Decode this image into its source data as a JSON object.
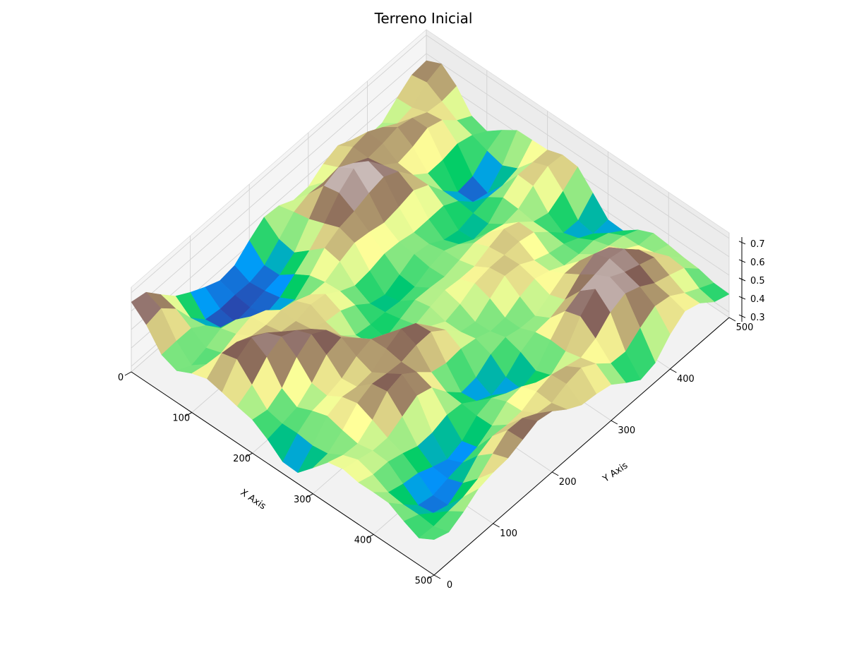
{
  "chart_data": {
    "type": "surface3d",
    "title": "Terreno Inicial",
    "xlabel": "X Axis",
    "ylabel": "Y Axis",
    "zlabel": "",
    "xlim": [
      0,
      500
    ],
    "ylim": [
      0,
      500
    ],
    "zlim": [
      0.27,
      0.73
    ],
    "x_ticks": [
      0,
      100,
      200,
      300,
      400,
      500
    ],
    "y_ticks": [
      0,
      100,
      200,
      300,
      400,
      500
    ],
    "z_ticks": [
      0.3,
      0.4,
      0.5,
      0.6,
      0.7
    ],
    "x_tick_labels": [
      "0",
      "100",
      "200",
      "300",
      "400",
      "500"
    ],
    "y_tick_labels": [
      "0",
      "100",
      "200",
      "300",
      "400",
      "500"
    ],
    "z_tick_labels": [
      "0.3",
      "0.4",
      "0.5",
      "0.6",
      "0.7"
    ],
    "colormap": "terrain",
    "grid": true,
    "grid_size": 21,
    "x": [
      0,
      25,
      50,
      75,
      100,
      125,
      150,
      175,
      200,
      225,
      250,
      275,
      300,
      325,
      350,
      375,
      400,
      425,
      450,
      475,
      500
    ],
    "y": [
      0,
      25,
      50,
      75,
      100,
      125,
      150,
      175,
      200,
      225,
      250,
      275,
      300,
      325,
      350,
      375,
      400,
      425,
      450,
      475,
      500
    ]
  }
}
